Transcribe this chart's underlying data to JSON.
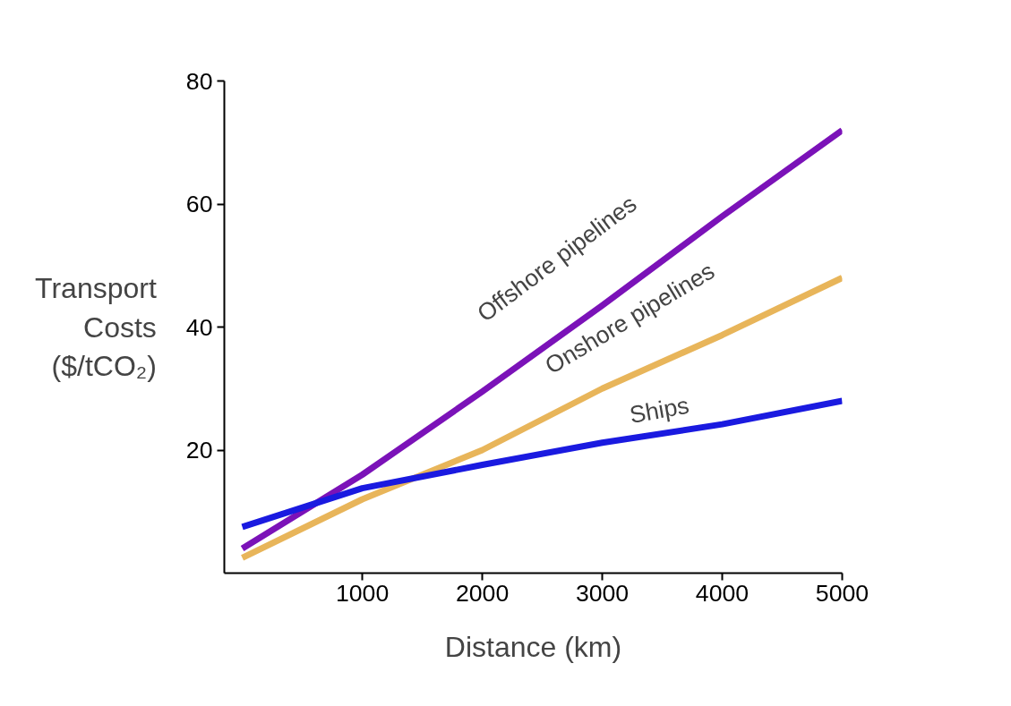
{
  "chart_data": {
    "type": "line",
    "xlabel": "Distance (km)",
    "ylabel": "Transport\nCosts\n($/tCO₂)",
    "x": [
      0,
      1000,
      2000,
      3000,
      4000,
      5000
    ],
    "series": [
      {
        "name": "Offshore pipelines",
        "color": "#7b12b8",
        "values": [
          4,
          16,
          29.5,
          43.5,
          58,
          72
        ]
      },
      {
        "name": "Onshore pipelines",
        "color": "#e8b55a",
        "values": [
          2.5,
          12,
          20,
          30,
          38.7,
          48
        ]
      },
      {
        "name": "Ships",
        "color": "#1a1ae0",
        "values": [
          7.5,
          13.8,
          17.6,
          21.2,
          24.2,
          28
        ]
      }
    ],
    "xlim": [
      -150,
      5000
    ],
    "ylim": [
      0,
      80
    ],
    "xticks": [
      1000,
      2000,
      3000,
      4000,
      5000
    ],
    "yticks": [
      20,
      40,
      60,
      80
    ],
    "grid": false,
    "legend": false,
    "marker": "none",
    "line_style": "solid"
  }
}
